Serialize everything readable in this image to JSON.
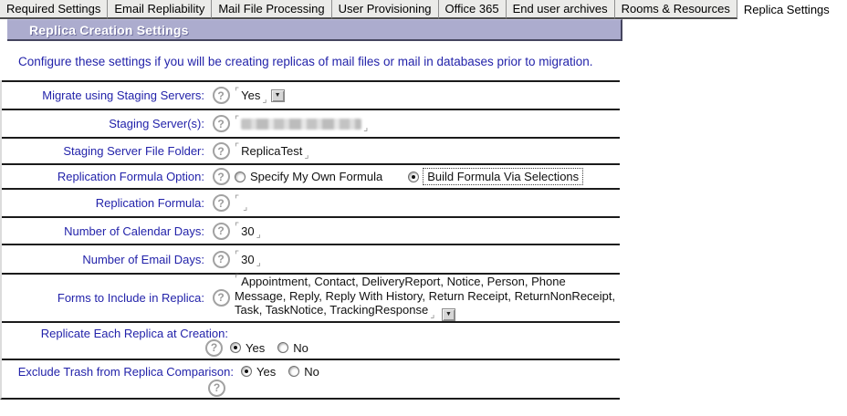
{
  "tabs": {
    "items": [
      {
        "label": "Required Settings"
      },
      {
        "label": "Email Repliability"
      },
      {
        "label": "Mail File Processing"
      },
      {
        "label": "User Provisioning"
      },
      {
        "label": "Office 365"
      },
      {
        "label": "End user archives"
      },
      {
        "label": "Rooms & Resources"
      },
      {
        "label": "Replica Settings",
        "active": true
      }
    ]
  },
  "header": {
    "title": "Replica Creation Settings"
  },
  "intro": {
    "text": "Configure these settings if you will be creating replicas of mail files or mail in databases prior to migration."
  },
  "settings": {
    "migrate_using_staging_servers": {
      "label": "Migrate using Staging Servers:",
      "value": "Yes",
      "control": "dropdown"
    },
    "staging_servers": {
      "label": "Staging Server(s):",
      "value_redacted": true
    },
    "staging_server_file_folder": {
      "label": "Staging Server File Folder:",
      "value": "ReplicaTest"
    },
    "replication_formula_option": {
      "label": "Replication Formula Option:",
      "options": [
        {
          "label": "Specify My Own Formula",
          "selected": false
        },
        {
          "label": "Build Formula Via Selections",
          "selected": true,
          "focused": true
        }
      ]
    },
    "replication_formula": {
      "label": "Replication Formula:",
      "value": ""
    },
    "number_of_calendar_days": {
      "label": "Number of Calendar Days:",
      "value": "30"
    },
    "number_of_email_days": {
      "label": "Number of Email Days:",
      "value": "30"
    },
    "forms_to_include": {
      "label": "Forms to Include in Replica:",
      "value": "Appointment, Contact, DeliveryReport, Notice, Person, Phone Message, Reply, Reply With History, Return Receipt, ReturnNonReceipt, Task, TaskNotice, TrackingResponse",
      "control": "dropdown"
    },
    "replicate_each_replica_at_creation": {
      "label": "Replicate Each Replica at Creation:",
      "options": [
        {
          "label": "Yes",
          "selected": true
        },
        {
          "label": "No",
          "selected": false
        }
      ]
    },
    "exclude_trash_from_replica_comparison": {
      "label": "Exclude Trash from Replica Comparison:",
      "options": [
        {
          "label": "Yes",
          "selected": true
        },
        {
          "label": "No",
          "selected": false
        }
      ]
    }
  },
  "icons": {
    "help": "?",
    "dropdown_arrow": "▼",
    "field_start": "⌜",
    "field_end": "⌟"
  },
  "colors": {
    "header_bg": "#acacce",
    "label_text": "#2323aa",
    "tab_underline": "#4f4f4f",
    "divider": "#1b1b1b"
  }
}
